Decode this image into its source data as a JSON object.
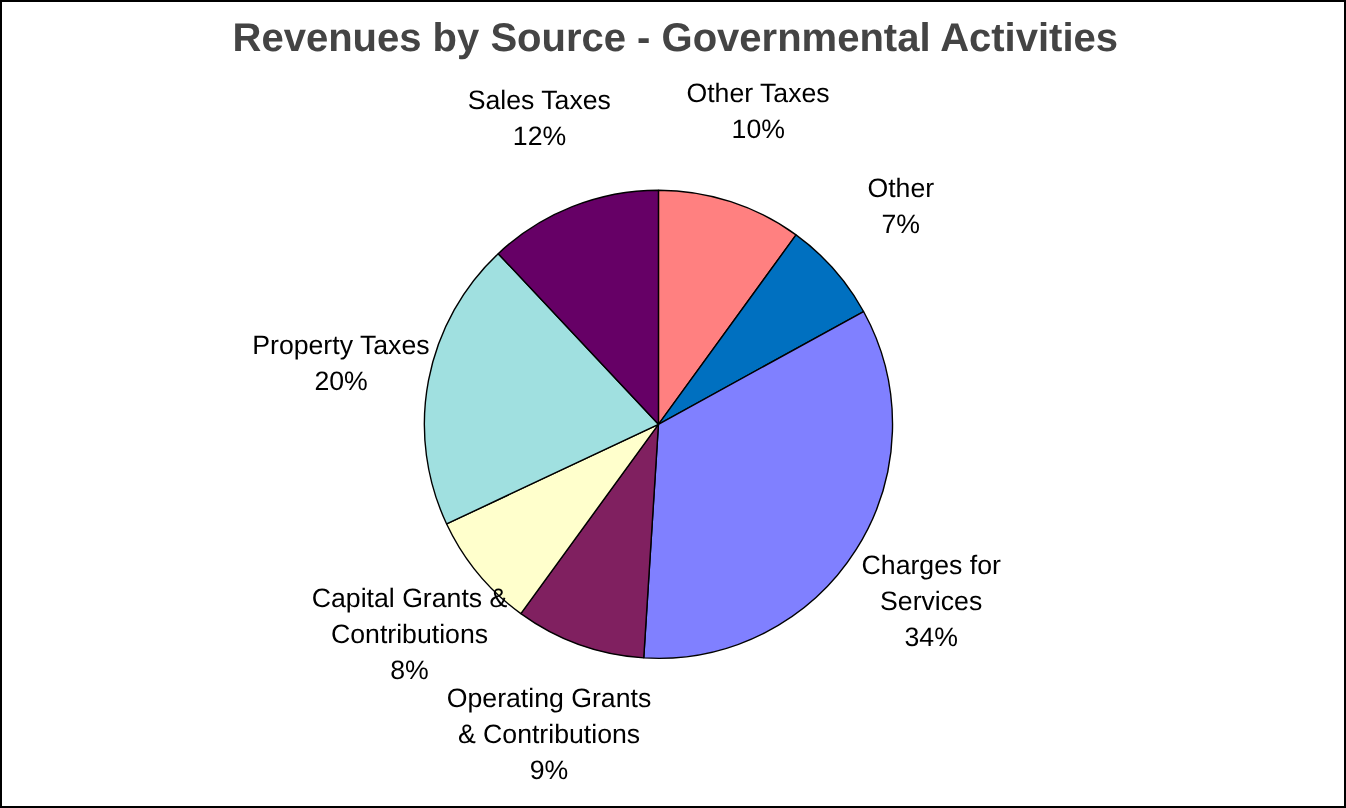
{
  "chart_data": {
    "type": "pie",
    "title": "Revenues by Source - Governmental Activities",
    "categories": [
      "Other Taxes",
      "Other",
      "Charges for Services",
      "Operating Grants & Contributions",
      "Capital Grants & Contributions",
      "Property Taxes",
      "Sales Taxes"
    ],
    "values": [
      10,
      7,
      34,
      9,
      8,
      20,
      12
    ],
    "colors": [
      "#ff8080",
      "#0070c0",
      "#8080ff",
      "#802060",
      "#ffffcc",
      "#a0e0e0",
      "#660066"
    ],
    "value_labels": [
      "10%",
      "7%",
      "34%",
      "9%",
      "8%",
      "20%",
      "12%"
    ]
  }
}
